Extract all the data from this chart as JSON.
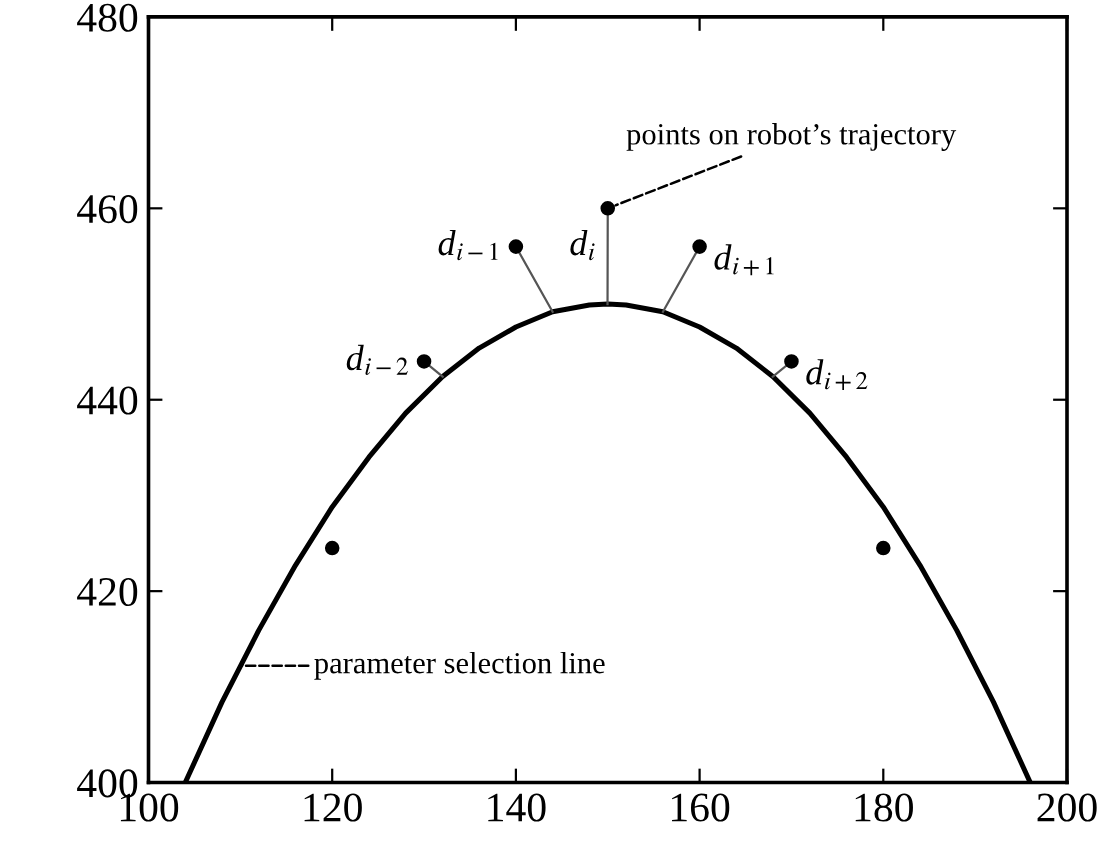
{
  "chart_data": {
    "type": "line",
    "xlim": [
      100,
      200
    ],
    "ylim": [
      400,
      480
    ],
    "xticks": [
      100,
      120,
      140,
      160,
      180,
      200
    ],
    "yticks": [
      400,
      420,
      440,
      460,
      480
    ],
    "grid": false,
    "legend": false,
    "series": [
      {
        "color": "#000000",
        "marker": "none",
        "x": [
          104,
          108,
          112,
          116,
          120,
          124,
          128,
          132,
          136,
          140,
          144,
          148,
          150,
          152,
          156,
          160,
          164,
          168,
          172,
          176,
          180,
          184,
          188,
          192,
          196
        ],
        "values": [
          400.0,
          408.4,
          415.9,
          422.7,
          428.8,
          434.0,
          438.6,
          442.4,
          445.4,
          447.6,
          449.2,
          449.9,
          450.0,
          449.9,
          449.2,
          447.6,
          445.4,
          442.4,
          438.6,
          434.0,
          428.8,
          422.7,
          415.9,
          408.4,
          400.0
        ]
      },
      {
        "type": "scatter",
        "color": "#000000",
        "marker": "circle",
        "x": [
          120,
          130,
          140,
          150,
          160,
          170,
          180
        ],
        "values": [
          424.5,
          444,
          456,
          460,
          456,
          444,
          424.5
        ]
      }
    ],
    "annotations": [
      {
        "text": "points on robot’s trajectory",
        "x": 150,
        "y": 460
      },
      {
        "text": "parameter selection line",
        "x": 110,
        "y": 412.2
      },
      {
        "text": "d$_{i−2}$",
        "x": 130,
        "y": 444
      },
      {
        "text": "d$_{i−1}$",
        "x": 140,
        "y": 456
      },
      {
        "text": "d$_{i}$",
        "x": 150,
        "y": 460
      },
      {
        "text": "d$_{i+1}$",
        "x": 160,
        "y": 456
      },
      {
        "text": "d$_{i+2}$",
        "x": 170,
        "y": 444
      }
    ]
  }
}
